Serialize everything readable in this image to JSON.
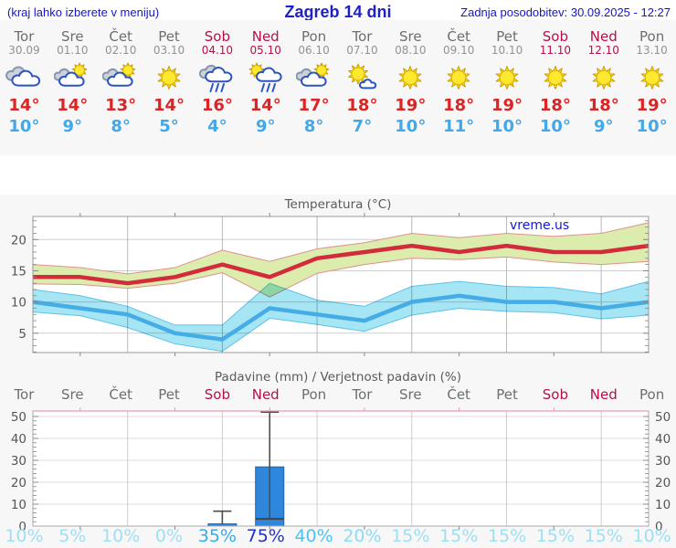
{
  "header": {
    "menu_note": "(kraj lahko izberete v meniju)",
    "title": "Zagreb 14 dni",
    "last_updated": "Zadnja posodobitev: 30.09.2025 - 12:27"
  },
  "colors": {
    "weekend": "#b50f4c",
    "weekday": "#6e6e6e",
    "t_max_text": "#dc2424",
    "t_min_text": "#41a8ea",
    "header_blue": "#1414cc"
  },
  "columns": [
    {
      "day": "Tor",
      "date": "30.09",
      "weekend": false,
      "icon": "cloudy",
      "t_max_label": "14°",
      "t_min_label": "10°"
    },
    {
      "day": "Sre",
      "date": "01.10",
      "weekend": false,
      "icon": "partly-sunny",
      "t_max_label": "14°",
      "t_min_label": "9°"
    },
    {
      "day": "Čet",
      "date": "02.10",
      "weekend": false,
      "icon": "partly-sunny",
      "t_max_label": "13°",
      "t_min_label": "8°"
    },
    {
      "day": "Pet",
      "date": "03.10",
      "weekend": false,
      "icon": "sunny",
      "t_max_label": "14°",
      "t_min_label": "5°"
    },
    {
      "day": "Sob",
      "date": "04.10",
      "weekend": true,
      "icon": "rain",
      "t_max_label": "16°",
      "t_min_label": "4°"
    },
    {
      "day": "Ned",
      "date": "05.10",
      "weekend": true,
      "icon": "sun-rain",
      "t_max_label": "14°",
      "t_min_label": "9°"
    },
    {
      "day": "Pon",
      "date": "06.10",
      "weekend": false,
      "icon": "partly-sunny",
      "t_max_label": "17°",
      "t_min_label": "8°"
    },
    {
      "day": "Tor",
      "date": "07.10",
      "weekend": false,
      "icon": "mostly-sunny",
      "t_max_label": "18°",
      "t_min_label": "7°"
    },
    {
      "day": "Sre",
      "date": "08.10",
      "weekend": false,
      "icon": "sunny",
      "t_max_label": "19°",
      "t_min_label": "10°"
    },
    {
      "day": "Čet",
      "date": "09.10",
      "weekend": false,
      "icon": "sunny",
      "t_max_label": "18°",
      "t_min_label": "11°"
    },
    {
      "day": "Pet",
      "date": "10.10",
      "weekend": false,
      "icon": "sunny",
      "t_max_label": "19°",
      "t_min_label": "10°"
    },
    {
      "day": "Sob",
      "date": "11.10",
      "weekend": true,
      "icon": "sunny",
      "t_max_label": "18°",
      "t_min_label": "10°"
    },
    {
      "day": "Ned",
      "date": "12.10",
      "weekend": true,
      "icon": "sunny",
      "t_max_label": "18°",
      "t_min_label": "9°"
    },
    {
      "day": "Pon",
      "date": "13.10",
      "weekend": false,
      "icon": "sunny",
      "t_max_label": "19°",
      "t_min_label": "10°"
    }
  ],
  "chart_data": [
    {
      "type": "line",
      "title": "Temperatura (°C)",
      "watermark": "vreme.us",
      "categories": [
        "Tor 30.09",
        "Sre 01.10",
        "Čet 02.10",
        "Pet 03.10",
        "Sob 04.10",
        "Ned 05.10",
        "Pon 06.10",
        "Tor 07.10",
        "Sre 08.10",
        "Čet 09.10",
        "Pet 10.10",
        "Sob 11.10",
        "Ned 12.10",
        "Pon 13.10"
      ],
      "series": [
        {
          "name": "t_max",
          "color": "#d22b3b",
          "values": [
            14,
            14,
            13,
            14,
            16,
            14,
            17,
            18,
            19,
            18,
            19,
            18,
            18,
            19
          ]
        },
        {
          "name": "t_min",
          "color": "#45ace6",
          "values": [
            10,
            9,
            8,
            5,
            4,
            9,
            8,
            7,
            10,
            11,
            10,
            10,
            9,
            10
          ]
        }
      ],
      "bands": [
        {
          "name": "t_max_range",
          "fill": "#dcecac",
          "edge": "#e09090",
          "hi": [
            16,
            15.5,
            14.5,
            15.5,
            18.3,
            16.5,
            18.5,
            19.5,
            21,
            20.3,
            21,
            20.5,
            21,
            22.7
          ],
          "lo": [
            12.9,
            12.8,
            12.2,
            13,
            14.7,
            10.8,
            14.6,
            16,
            17,
            16.8,
            17.2,
            16.4,
            16,
            16.5
          ]
        },
        {
          "name": "t_min_range",
          "fill": "#a6e6f4",
          "edge": "#5ec0ea",
          "hi": [
            12,
            11,
            9.3,
            6.3,
            6.3,
            13,
            10.3,
            9.3,
            12.5,
            13.3,
            12.5,
            12.3,
            11.3,
            13.3
          ],
          "lo": [
            8.4,
            7.8,
            5.9,
            3.3,
            2.1,
            7.4,
            6.4,
            5.3,
            7.9,
            9,
            8.5,
            8.3,
            7.3,
            7.9
          ]
        }
      ],
      "ylim": [
        1.9,
        23.7
      ],
      "yticks": [
        5,
        10,
        15,
        20
      ],
      "grid": true,
      "legend": "none"
    },
    {
      "type": "bar",
      "title": "Padavine (mm) / Verjetnost padavin (%)",
      "categories": [
        "Tor",
        "Sre",
        "Čet",
        "Pet",
        "Sob",
        "Ned",
        "Pon",
        "Tor",
        "Sre",
        "Čet",
        "Pet",
        "Sob",
        "Ned",
        "Pon"
      ],
      "values": [
        0,
        0,
        0,
        0,
        1,
        27,
        0,
        0,
        0,
        0,
        0,
        0,
        0,
        0
      ],
      "bar_color": "#2f87dc",
      "bar_edge": "#1f5fa8",
      "whiskers": [
        {
          "index": 4,
          "lo": 1,
          "hi": 6.8
        },
        {
          "index": 5,
          "lo": 3.3,
          "hi": 52
        }
      ],
      "medians": [
        {
          "index": 5,
          "value": 3.3
        }
      ],
      "probabilities": [
        10,
        5,
        10,
        0,
        35,
        75,
        40,
        20,
        15,
        15,
        15,
        15,
        15,
        10
      ],
      "prob_labels": [
        "10%",
        "5%",
        "10%",
        "0%",
        "35%",
        "75%",
        "40%",
        "20%",
        "15%",
        "15%",
        "15%",
        "15%",
        "15%",
        "10%"
      ],
      "prob_colors": [
        "#9edff5",
        "#9edff5",
        "#9edff5",
        "#9edff5",
        "#39ace8",
        "#2430c8",
        "#4cc3f4",
        "#8cdcf5",
        "#9edff5",
        "#9edff5",
        "#9edff5",
        "#9edff5",
        "#9edff5",
        "#9edff5"
      ],
      "ylim": [
        0,
        52.5
      ],
      "yticks": [
        0,
        10,
        20,
        30,
        40,
        50
      ],
      "grid": true
    }
  ]
}
